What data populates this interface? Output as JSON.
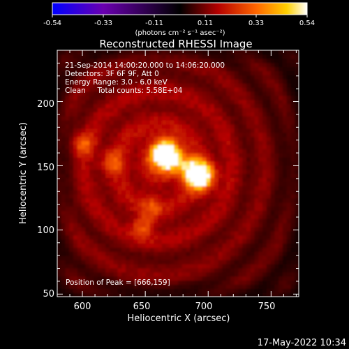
{
  "colorbar": {
    "tick_labels": [
      "-0.54",
      "-0.33",
      "-0.11",
      "0.11",
      "0.33",
      "0.54"
    ],
    "range": [
      -0.54,
      0.54
    ],
    "unit_label": "(photons cm⁻² s⁻¹ asec⁻²)",
    "colors": [
      "#0000ff",
      "#6a00b0",
      "#000000",
      "#b40000",
      "#ff6600",
      "#ffd000",
      "#ffffff"
    ]
  },
  "title": "Reconstructed RHESSI Image",
  "annotations": {
    "line1": "21-Sep-2014 14:00:20.000 to 14:06:20.000",
    "line2": "Detectors: 3F 6F 9F, Att 0",
    "line3": "Energy Range: 3.0 - 6.0 keV",
    "line4": "Clean     Total counts: 5.58E+04",
    "peak": "Position of Peak = [666,159]"
  },
  "footer_timestamp": "17-May-2022 10:34",
  "chart_data": {
    "type": "heatmap",
    "xlabel": "Heliocentric X (arcsec)",
    "ylabel": "Heliocentric Y (arcsec)",
    "xlim": [
      580,
      772
    ],
    "ylim": [
      48,
      240
    ],
    "x_ticks": [
      600,
      650,
      700,
      750
    ],
    "y_ticks": [
      50,
      100,
      150,
      200
    ],
    "x_tick_labels": [
      "600",
      "650",
      "700",
      "750"
    ],
    "y_tick_labels": [
      "50",
      "100",
      "150",
      "200"
    ],
    "peak_position": [
      666,
      159
    ],
    "sources": [
      {
        "x": 666,
        "y": 159,
        "peak_value": 0.54
      },
      {
        "x": 693,
        "y": 143,
        "peak_value": 0.46
      },
      {
        "x": 601,
        "y": 167,
        "peak_value": 0.18
      },
      {
        "x": 624,
        "y": 153,
        "peak_value": 0.16
      },
      {
        "x": 648,
        "y": 102,
        "peak_value": 0.17
      },
      {
        "x": 655,
        "y": 117,
        "peak_value": 0.12
      }
    ]
  }
}
